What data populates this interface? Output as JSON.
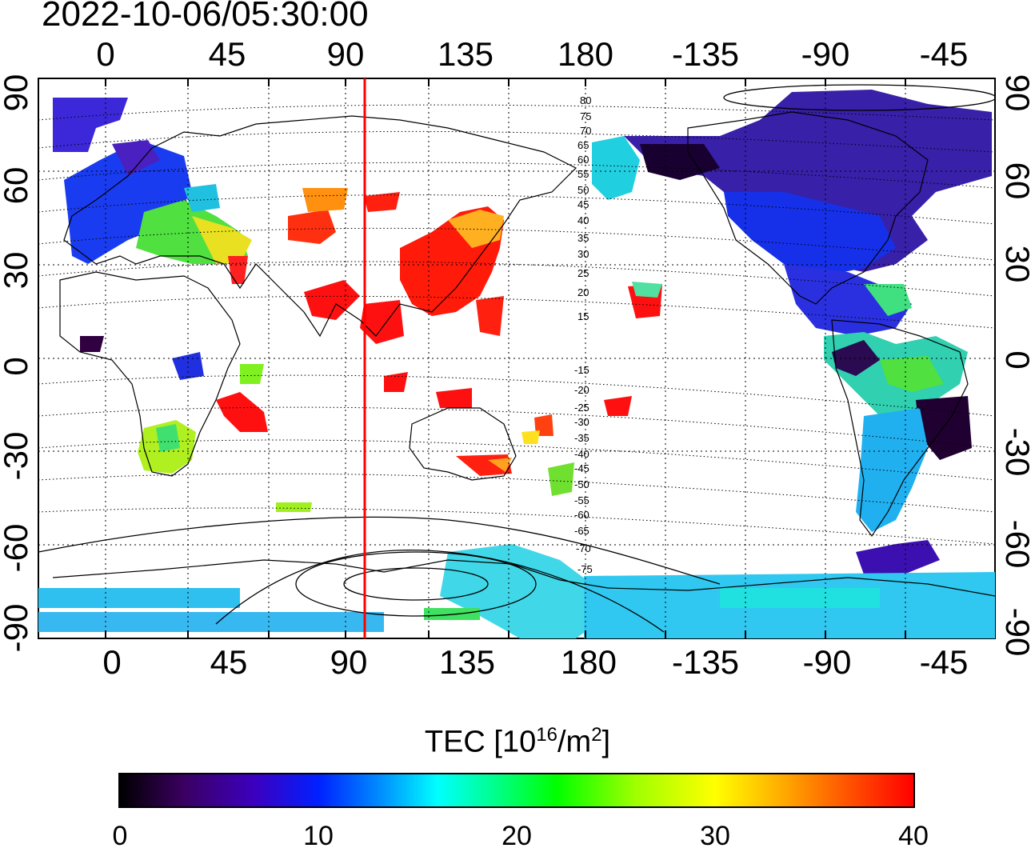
{
  "timestamp": "2022-10-06/05:30:00",
  "axes": {
    "top_lon_labels": [
      "0",
      "45",
      "90",
      "135",
      "180",
      "-135",
      "-90",
      "-45"
    ],
    "bottom_lon_labels": [
      "0",
      "45",
      "90",
      "135",
      "180",
      "-135",
      "-90",
      "-45"
    ],
    "left_lat_labels": [
      "90",
      "60",
      "30",
      "0",
      "-30",
      "-60",
      "-90"
    ],
    "right_lat_labels": [
      "90",
      "60",
      "30",
      "0",
      "-30",
      "-60",
      "-90"
    ]
  },
  "magnetic_latitude_labels": [
    "80",
    "75",
    "70",
    "65",
    "60",
    "55",
    "50",
    "45",
    "40",
    "35",
    "30",
    "25",
    "20",
    "15",
    "-15",
    "-20",
    "-25",
    "-30",
    "-35",
    "-40",
    "-45",
    "-50",
    "-55",
    "-60",
    "-65",
    "-70",
    "-75"
  ],
  "colorbar": {
    "title_main": "TEC  [10",
    "title_exp1": "16",
    "title_mid": "/m",
    "title_exp2": "2",
    "title_end": "]",
    "ticks": [
      "0",
      "10",
      "20",
      "30",
      "40"
    ]
  },
  "terminator_line_color": "#ff0000",
  "tec_color_scale": [
    "#000000",
    "#3c00c0",
    "#0020ff",
    "#00ffff",
    "#00ff00",
    "#ffff00",
    "#ff0000"
  ]
}
